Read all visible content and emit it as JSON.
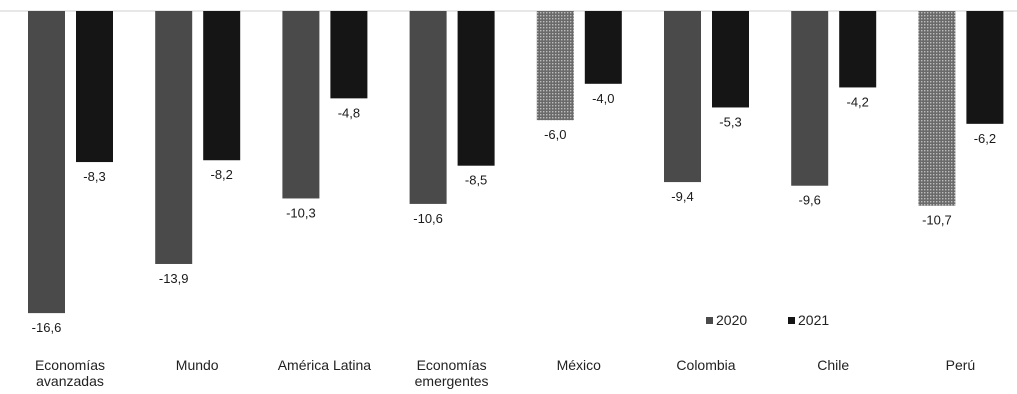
{
  "chart_data": {
    "type": "bar",
    "categories": [
      [
        "Economías",
        "avanzadas"
      ],
      [
        "Mundo"
      ],
      [
        "América Latina"
      ],
      [
        "Economías",
        "emergentes"
      ],
      [
        "México"
      ],
      [
        "Colombia"
      ],
      [
        "Chile"
      ],
      [
        "Perú"
      ]
    ],
    "series": [
      {
        "name": "2020",
        "values": [
          -16.6,
          -13.9,
          -10.3,
          -10.6,
          -6.0,
          -9.4,
          -9.6,
          -10.7
        ],
        "labels": [
          "-16,6",
          "-13,9",
          "-10,3",
          "-10,6",
          "-6,0",
          "-9,4",
          "-9,6",
          "-10,7"
        ],
        "color": "#4a4a4a"
      },
      {
        "name": "2021",
        "values": [
          -8.3,
          -8.2,
          -4.8,
          -8.5,
          -4.0,
          -5.3,
          -4.2,
          -6.2
        ],
        "labels": [
          "-8,3",
          "-8,2",
          "-4,8",
          "-8,5",
          "-4,0",
          "-5,3",
          "-4,2",
          "-6,2"
        ],
        "color": "#151515"
      }
    ],
    "ylim": [
      -17.5,
      0
    ],
    "grid": false,
    "legend_position": "bottom-right",
    "title": "",
    "xlabel": "",
    "ylabel": ""
  }
}
